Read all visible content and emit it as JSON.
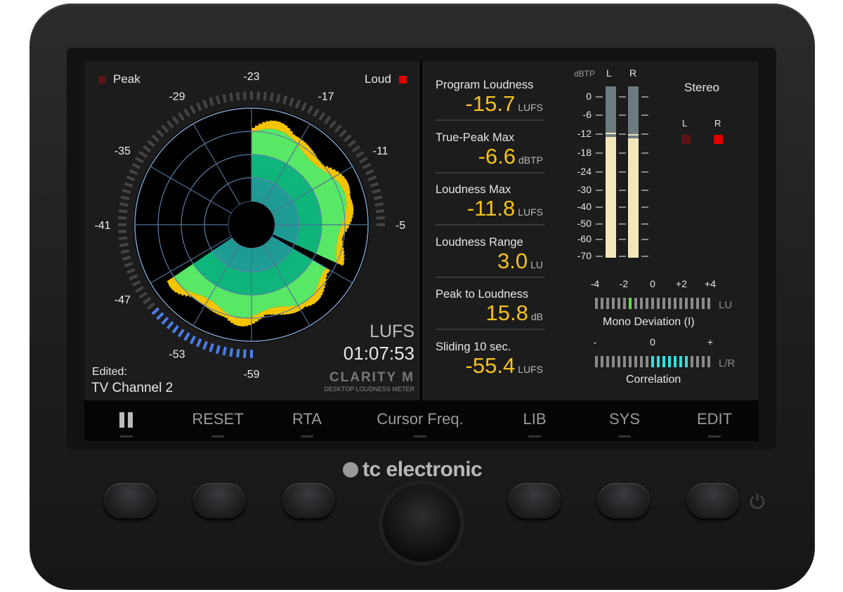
{
  "brand": {
    "logo": "tc electronic",
    "product": "CLARITY M",
    "product_sub": "DESKTOP LOUDNESS METER"
  },
  "radar": {
    "peak_label": "Peak",
    "loud_label": "Loud",
    "peak_color": "#5a1414",
    "loud_color": "#e00000",
    "scale": [
      "-59",
      "-53",
      "-47",
      "-41",
      "-35",
      "-29",
      "-23",
      "-17",
      "-11",
      "-5"
    ],
    "unit": "LUFS",
    "time": "01:07:53",
    "edited_label": "Edited:",
    "preset": "TV Channel 2",
    "colors": {
      "inner": "#1f9e96",
      "mid": "#0fb57a",
      "outer": "#58e866",
      "peaks": "#f5c400",
      "scale_active": "#4a7de8",
      "scale_idle": "#444444"
    }
  },
  "readings": [
    {
      "label": "Program Loudness",
      "value": "-15.7",
      "unit": "LUFS"
    },
    {
      "label": "True-Peak Max",
      "value": "-6.6",
      "unit": "dBTP"
    },
    {
      "label": "Loudness Max",
      "value": "-11.8",
      "unit": "LUFS"
    },
    {
      "label": "Loudness Range",
      "value": "3.0",
      "unit": "LU"
    },
    {
      "label": "Peak to Loudness",
      "value": "15.8",
      "unit": "dB"
    },
    {
      "label": "Sliding 10 sec.",
      "value": "-55.4",
      "unit": "LUFS"
    }
  ],
  "meters": {
    "unit": "dBTP",
    "left_label": "L",
    "right_label": "R",
    "scale": [
      "0",
      "-6",
      "-12",
      "-18",
      "-24",
      "-30",
      "-40",
      "-50",
      "-60",
      "-70"
    ],
    "left_level_db": -13,
    "right_level_db": -13.5,
    "mode": "Stereo",
    "peak_l_label": "L",
    "peak_r_label": "R",
    "peak_l_color": "#5a1414",
    "peak_r_color": "#e00000"
  },
  "mono_deviation": {
    "ticks": [
      "-4",
      "-2",
      "0",
      "+2",
      "+4"
    ],
    "unit": "LU",
    "title": "Mono Deviation (I)",
    "value_lu": -1.5
  },
  "correlation": {
    "ticks": [
      "-",
      "0",
      "+"
    ],
    "unit": "L/R",
    "title": "Correlation",
    "range": [
      0,
      0.6
    ]
  },
  "softkeys": [
    "pause",
    "RESET",
    "RTA",
    "Cursor Freq.",
    "LIB",
    "SYS",
    "EDIT"
  ]
}
